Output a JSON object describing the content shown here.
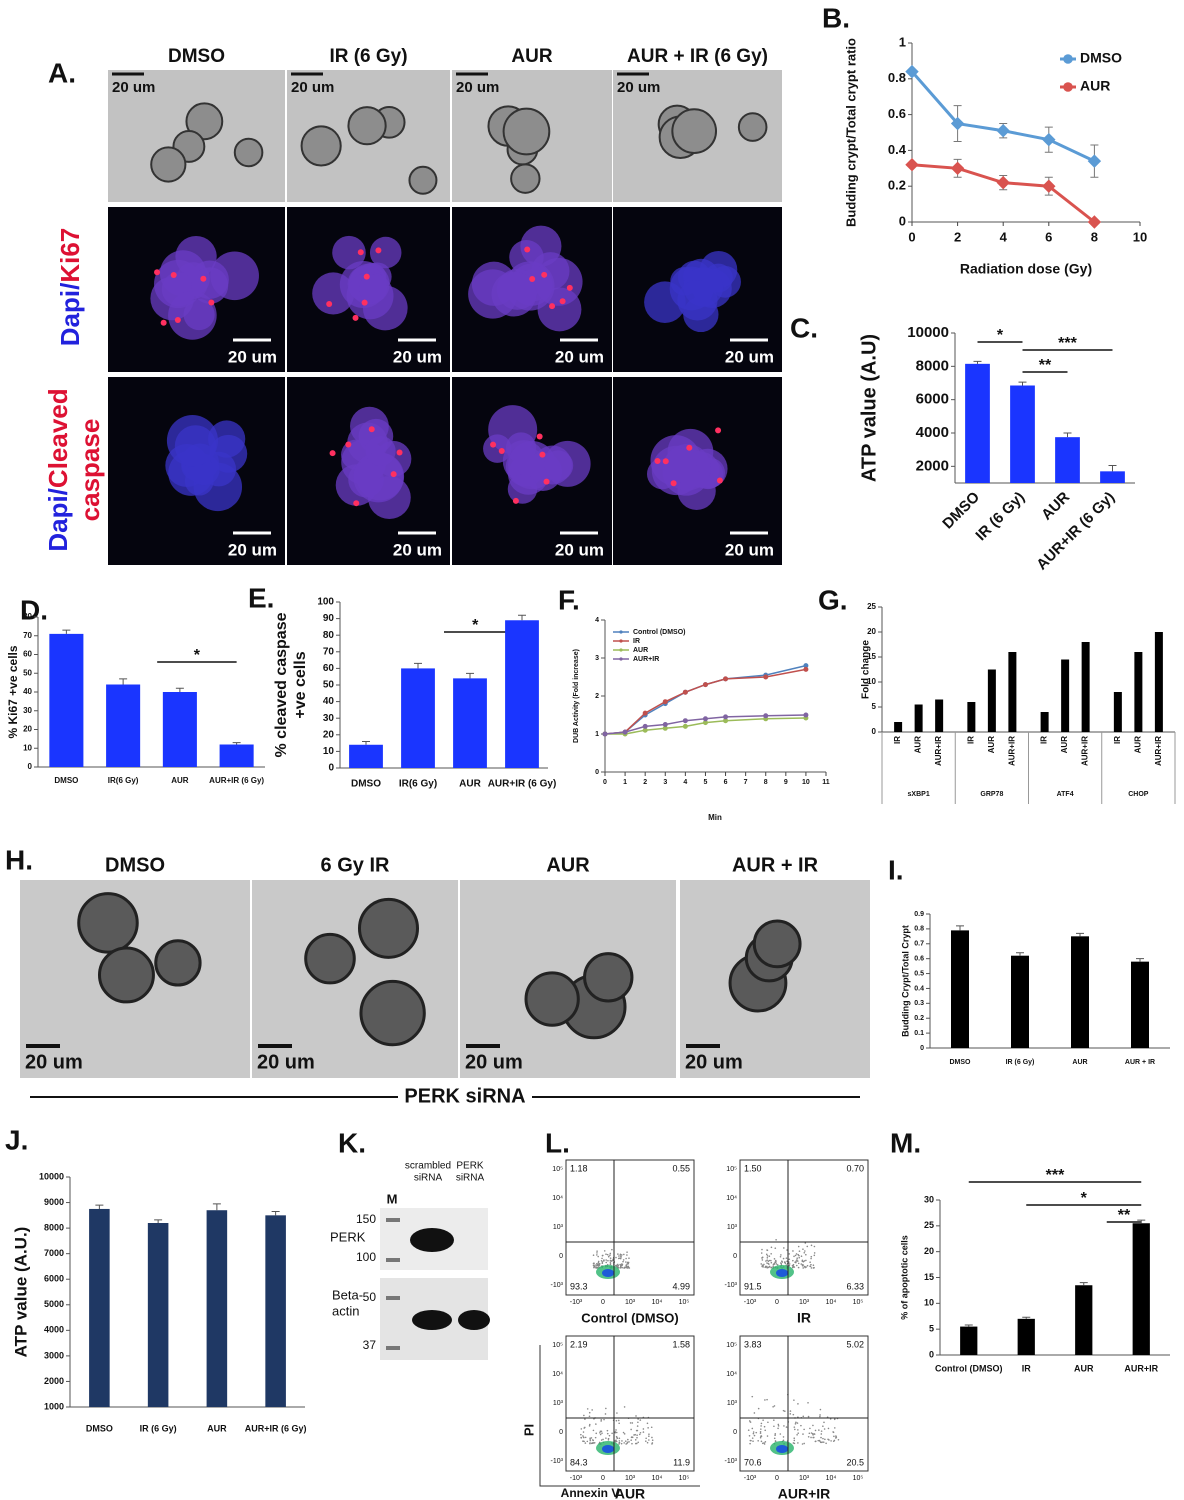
{
  "panels": {
    "A": {
      "label": "A.",
      "columns": [
        "DMSO",
        "IR (6 Gy)",
        "AUR",
        "AUR + IR (6 Gy)"
      ],
      "row_labels": [
        [
          "Dapi/",
          "Ki67"
        ],
        [
          "Dapi/",
          "Cleaved",
          "caspase"
        ]
      ],
      "scale_bar": "20 um"
    },
    "H": {
      "label": "H.",
      "columns": [
        "DMSO",
        "6 Gy IR",
        "AUR",
        "AUR + IR"
      ],
      "scale_bar": "20 um",
      "caption": "PERK siRNA"
    },
    "K": {
      "label": "K.",
      "lanes": [
        "M",
        [
          "scrambled",
          "siRNA"
        ],
        [
          "PERK",
          "siRNA"
        ]
      ],
      "markers": [
        150,
        100,
        50,
        37
      ],
      "proteins": [
        "PERK",
        [
          "Beta-",
          "actin"
        ]
      ]
    },
    "L": {
      "label": "L.",
      "y_label": "PI",
      "x_label": "Annexin V",
      "axis_ticks": [
        "-10³",
        "0",
        "10³",
        "10⁴",
        "10⁵"
      ],
      "plots": [
        {
          "name": "Control (DMSO)",
          "quadrants": [
            "1.18",
            "0.55",
            "93.3",
            "4.99"
          ]
        },
        {
          "name": "IR",
          "quadrants": [
            "1.50",
            "0.70",
            "91.5",
            "6.33"
          ]
        },
        {
          "name": "AUR",
          "quadrants": [
            "2.19",
            "1.58",
            "84.3",
            "11.9"
          ]
        },
        {
          "name": "AUR+IR",
          "quadrants": [
            "3.83",
            "5.02",
            "70.6",
            "20.5"
          ]
        }
      ]
    }
  },
  "chart_data": [
    {
      "panel": "B.",
      "type": "line",
      "x_label": "Radiation dose (Gy)",
      "y_label": "Budding crypt/Total crypt ratio",
      "x": [
        0,
        2,
        4,
        6,
        8
      ],
      "marker": "diamond",
      "legend": "upper right",
      "series": [
        {
          "name": "DMSO",
          "color": "#5b9bd5",
          "values": [
            0.84,
            0.55,
            0.51,
            0.46,
            0.34
          ],
          "errors": [
            0,
            0.1,
            0.04,
            0.07,
            0.09
          ]
        },
        {
          "name": "AUR",
          "color": "#d9534f",
          "values": [
            0.32,
            0.3,
            0.22,
            0.2,
            0
          ],
          "errors": [
            0,
            0.05,
            0.04,
            0.05,
            0
          ]
        }
      ],
      "xlim": [
        0,
        10
      ],
      "xticks": [
        0,
        2,
        4,
        6,
        8,
        10
      ],
      "ylim": [
        0,
        1
      ],
      "yticks": [
        0,
        0.2,
        0.4,
        0.6,
        0.8,
        1
      ]
    },
    {
      "panel": "C.",
      "type": "bar",
      "y_label": "ATP value (A.U)",
      "categories": [
        "DMSO",
        "IR (6 Gy)",
        "AUR",
        "AUR+IR (6 Gy)"
      ],
      "values": [
        8150,
        6850,
        3750,
        1700
      ],
      "errors": [
        150,
        200,
        250,
        350
      ],
      "color": "#1a35ff",
      "ylim": [
        1000,
        10000
      ],
      "yticks": [
        2000,
        4000,
        6000,
        8000,
        10000
      ],
      "annotations": [
        "*",
        "**",
        "***"
      ]
    },
    {
      "panel": "D.",
      "type": "bar",
      "y_label": "% Ki67 +ve cells",
      "categories": [
        "DMSO",
        "IR(6 Gy)",
        "AUR",
        "AUR+IR (6 Gy)"
      ],
      "values": [
        71,
        44,
        40,
        12
      ],
      "errors": [
        2,
        3,
        2,
        1
      ],
      "color": "#1a35ff",
      "ylim": [
        0,
        80
      ],
      "yticks": [
        0,
        10,
        20,
        30,
        40,
        50,
        60,
        70,
        80
      ],
      "annotations": [
        "*"
      ]
    },
    {
      "panel": "E.",
      "type": "bar",
      "y_label": [
        "% cleaved caspase",
        "+ve cells"
      ],
      "categories": [
        "DMSO",
        "IR(6 Gy)",
        "AUR",
        "AUR+IR (6 Gy)"
      ],
      "values": [
        14,
        60,
        54,
        89
      ],
      "errors": [
        2,
        3,
        3,
        3
      ],
      "color": "#1a35ff",
      "ylim": [
        0,
        100
      ],
      "yticks": [
        0,
        10,
        20,
        30,
        40,
        50,
        60,
        70,
        80,
        90,
        100
      ],
      "annotations": [
        "*"
      ]
    },
    {
      "panel": "F.",
      "type": "line",
      "x_label": "Min",
      "y_label": "DUB Activity (Fold increase)",
      "marker": "circle",
      "legend": "upper left",
      "x": [
        0,
        1,
        2,
        3,
        4,
        5,
        6,
        8,
        10
      ],
      "series": [
        {
          "name": "Control (DMSO)",
          "color": "#4f81bd",
          "values": [
            1,
            1.05,
            1.5,
            1.8,
            2.1,
            2.3,
            2.45,
            2.55,
            2.8
          ]
        },
        {
          "name": "IR",
          "color": "#c0504d",
          "values": [
            1,
            1.05,
            1.55,
            1.85,
            2.1,
            2.3,
            2.45,
            2.5,
            2.7
          ]
        },
        {
          "name": "AUR",
          "color": "#9bbb59",
          "values": [
            1,
            1,
            1.1,
            1.15,
            1.2,
            1.3,
            1.35,
            1.4,
            1.42
          ]
        },
        {
          "name": "AUR+IR",
          "color": "#8064a2",
          "values": [
            1,
            1.05,
            1.2,
            1.25,
            1.35,
            1.4,
            1.45,
            1.48,
            1.5
          ]
        }
      ],
      "xlim": [
        0,
        11
      ],
      "xticks": [
        0,
        1,
        2,
        3,
        4,
        5,
        6,
        7,
        8,
        9,
        10,
        11
      ],
      "ylim": [
        0,
        4
      ],
      "yticks": [
        0,
        1,
        2,
        3,
        4
      ]
    },
    {
      "panel": "G.",
      "type": "grouped_bar",
      "y_label": "Fold change",
      "categories": [
        "sXBP1",
        "GRP78",
        "ATF4",
        "CHOP"
      ],
      "series": [
        {
          "name": "IR",
          "color": "#000000",
          "values": [
            2,
            6,
            4,
            8
          ]
        },
        {
          "name": "AUR",
          "color": "#000000",
          "values": [
            5.5,
            12.5,
            14.5,
            16
          ]
        },
        {
          "name": "AUR+IR",
          "color": "#000000",
          "values": [
            6.5,
            16,
            18,
            20
          ]
        }
      ],
      "ylim": [
        0,
        25
      ],
      "yticks": [
        0,
        5,
        10,
        15,
        20,
        25
      ]
    },
    {
      "panel": "I.",
      "type": "bar",
      "y_label": "Budding Crypt/Total Crypt",
      "categories": [
        "DMSO",
        "IR (6 Gy)",
        "AUR",
        "AUR + IR"
      ],
      "values": [
        0.79,
        0.62,
        0.75,
        0.58
      ],
      "errors": [
        0.03,
        0.02,
        0.02,
        0.02
      ],
      "color": "#000000",
      "ylim": [
        0,
        0.9
      ],
      "yticks": [
        0,
        0.1,
        0.2,
        0.3,
        0.4,
        0.5,
        0.6,
        0.7,
        0.8,
        0.9
      ]
    },
    {
      "panel": "J.",
      "type": "bar",
      "y_label": "ATP value (A.U.)",
      "categories": [
        "DMSO",
        "IR (6 Gy)",
        "AUR",
        "AUR+IR (6 Gy)"
      ],
      "values": [
        8750,
        8200,
        8700,
        8500
      ],
      "errors": [
        150,
        120,
        250,
        150
      ],
      "color": "#1f3864",
      "ylim": [
        1000,
        10000
      ],
      "yticks": [
        1000,
        2000,
        3000,
        4000,
        5000,
        6000,
        7000,
        8000,
        9000,
        10000
      ]
    },
    {
      "panel": "M.",
      "type": "bar",
      "y_label": "% of apoptotic cells",
      "categories": [
        "Control (DMSO)",
        "IR",
        "AUR",
        "AUR+IR"
      ],
      "values": [
        5.5,
        7,
        13.5,
        25.5
      ],
      "errors": [
        0.3,
        0.3,
        0.5,
        0.6
      ],
      "color": "#000000",
      "ylim": [
        0,
        30
      ],
      "yticks": [
        0,
        5,
        10,
        15,
        20,
        25,
        30
      ],
      "annotations": [
        "***",
        "*",
        "**"
      ]
    }
  ]
}
